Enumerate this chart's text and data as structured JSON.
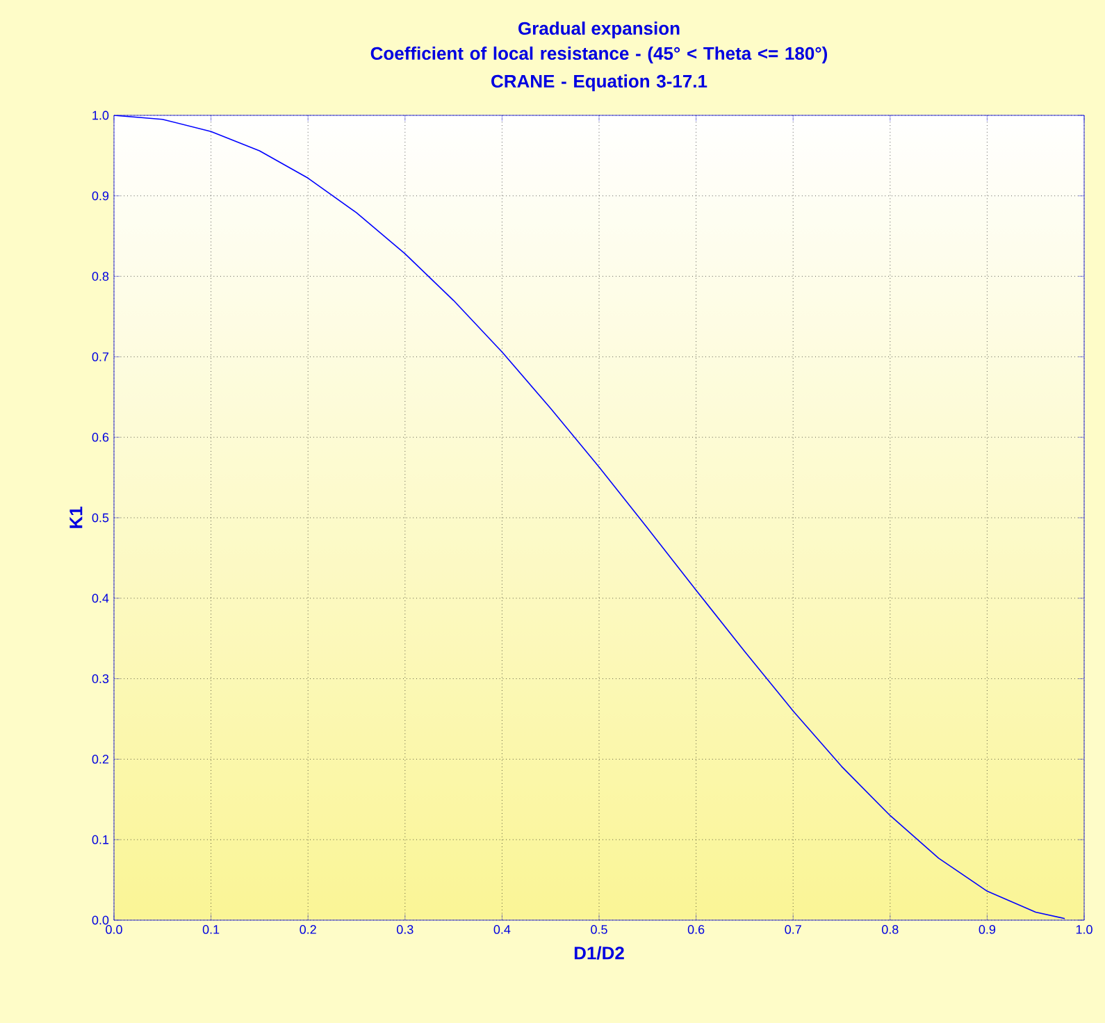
{
  "chart_data": {
    "type": "line",
    "title": "Gradual expansion",
    "subtitle": "Coefficient of local resistance - (45° < Theta <= 180°)\nCRANE - Equation 3-17.1",
    "xlabel": "D1/D2",
    "ylabel": "K1",
    "x": [
      0,
      0.05,
      0.1,
      0.15,
      0.2,
      0.25,
      0.3,
      0.35,
      0.4,
      0.45,
      0.5,
      0.55,
      0.6,
      0.65,
      0.7,
      0.75,
      0.8,
      0.85,
      0.9,
      0.95,
      0.98
    ],
    "series": [
      {
        "color": "#0000ff",
        "values": [
          1,
          0.995,
          0.98,
          0.956,
          0.922,
          0.879,
          0.828,
          0.77,
          0.706,
          0.636,
          0.563,
          0.487,
          0.41,
          0.334,
          0.26,
          0.191,
          0.13,
          0.077,
          0.036,
          0.01,
          0.002
        ]
      }
    ],
    "xlim": [
      0,
      1
    ],
    "ylim": [
      0,
      1
    ],
    "xticks": [
      {
        "value": 0,
        "label": "0.0"
      },
      0.1,
      0.2,
      0.3,
      0.4,
      0.5,
      0.6,
      0.7,
      0.8,
      0.9,
      {
        "value": 1,
        "label": "1.0"
      }
    ],
    "yticks": [
      {
        "value": 0,
        "label": "0.0"
      },
      0.1,
      0.2,
      0.3,
      0.4,
      0.5,
      0.6,
      0.7,
      0.8,
      0.9,
      {
        "value": 1,
        "label": "1.0"
      }
    ],
    "grid": true,
    "marker": "none",
    "line_style": "solid"
  }
}
